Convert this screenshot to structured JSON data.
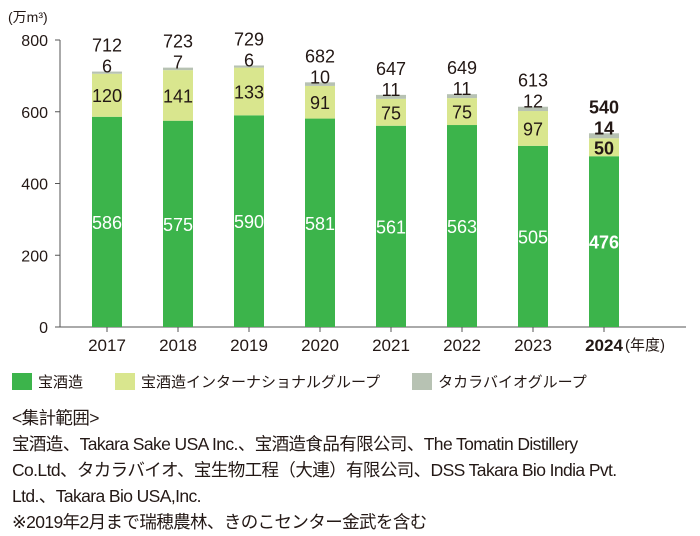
{
  "chart_data": {
    "type": "bar",
    "stacked": true,
    "ylabel": "(万m³)",
    "xlabel": "(年度)",
    "ylim": [
      0,
      800
    ],
    "yticks": [
      0,
      200,
      400,
      600,
      800
    ],
    "grid": false,
    "legend_placement": "bottom",
    "categories": [
      "2017",
      "2018",
      "2019",
      "2020",
      "2021",
      "2022",
      "2023",
      "2024"
    ],
    "highlight_category": "2024",
    "series": [
      {
        "name": "宝酒造",
        "color": "#3cb44b",
        "values": [
          586,
          575,
          590,
          581,
          561,
          563,
          505,
          476
        ]
      },
      {
        "name": "宝酒造インターナショナルグループ",
        "color": "#d9e68e",
        "values": [
          120,
          141,
          133,
          91,
          75,
          75,
          97,
          50
        ]
      },
      {
        "name": "タカラバイオグループ",
        "color": "#b7c2b3",
        "values": [
          6,
          7,
          6,
          10,
          11,
          11,
          12,
          14
        ]
      }
    ],
    "totals": [
      712,
      723,
      729,
      682,
      647,
      649,
      613,
      540
    ]
  },
  "notes": {
    "heading": "<集計範囲>",
    "lines": [
      "宝酒造、Takara Sake USA Inc.、宝酒造食品有限公司、The Tomatin Distillery",
      "Co.Ltd、タカラバイオ、宝生物工程（大連）有限公司、DSS Takara Bio India Pvt.",
      "Ltd.、Takara Bio USA,Inc."
    ],
    "footnote": "※2019年2月まで瑞穂農林、きのこセンター金武を含む"
  }
}
